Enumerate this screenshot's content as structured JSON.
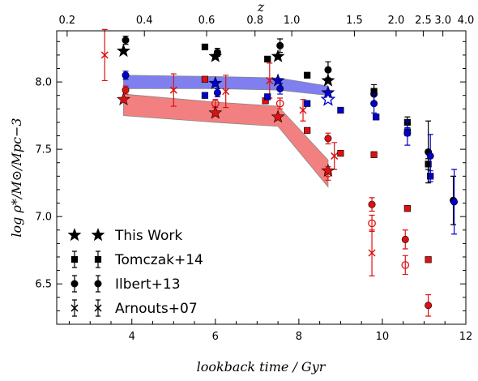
{
  "chart_data": {
    "type": "scatter",
    "title": "",
    "xlabel": "lookback time / Gyr",
    "ylabel": "log ρ*/M⊙/Mpc−3",
    "top_xlabel": "z",
    "xlim": [
      2.2,
      12.0
    ],
    "ylim": [
      6.2,
      8.38
    ],
    "grid": false,
    "legend_position": "lower-left",
    "x_ticks": [
      "4",
      "6",
      "8",
      "10",
      "12"
    ],
    "y_ticks": [
      "6.5",
      "7.0",
      "7.5",
      "8.0"
    ],
    "top_ticks": [
      {
        "label": "0.2",
        "t": 2.45
      },
      {
        "label": "0.4",
        "t": 4.3
      },
      {
        "label": "0.6",
        "t": 5.79
      },
      {
        "label": "0.8",
        "t": 6.95
      },
      {
        "label": "1.0",
        "t": 7.83
      },
      {
        "label": "1.5",
        "t": 9.33
      },
      {
        "label": "2.0",
        "t": 10.33
      },
      {
        "label": "2.5",
        "t": 10.98
      },
      {
        "label": "3.0",
        "t": 11.45
      },
      {
        "label": "4.0",
        "t": 12.0
      }
    ],
    "legend": [
      {
        "label": "This Work",
        "marker": "star"
      },
      {
        "label": "Tomczak+14",
        "marker": "square"
      },
      {
        "label": "Ilbert+13",
        "marker": "circle"
      },
      {
        "label": "Arnouts+07",
        "marker": "x"
      }
    ],
    "bands": [
      {
        "color": "#7f7ff0",
        "x": [
          3.8,
          6.0,
          7.5,
          8.7
        ],
        "lower": [
          7.95,
          7.95,
          7.94,
          7.9
        ],
        "upper": [
          8.05,
          8.04,
          8.03,
          7.97
        ]
      },
      {
        "color": "#f28080",
        "x": [
          3.8,
          6.0,
          7.5,
          8.7
        ],
        "lower": [
          7.75,
          7.7,
          7.67,
          7.22
        ],
        "upper": [
          7.91,
          7.85,
          7.82,
          7.42
        ]
      }
    ],
    "series": [
      {
        "name": "This Work",
        "marker": "star",
        "points": [
          {
            "x": 3.8,
            "y": 8.23,
            "c": "k",
            "f": true
          },
          {
            "x": 3.8,
            "y": 7.87,
            "c": "r",
            "f": true
          },
          {
            "x": 6.0,
            "y": 8.19,
            "c": "k",
            "f": true
          },
          {
            "x": 6.0,
            "y": 7.99,
            "c": "b",
            "f": true
          },
          {
            "x": 6.0,
            "y": 7.77,
            "c": "r",
            "f": true
          },
          {
            "x": 7.5,
            "y": 8.19,
            "c": "k",
            "f": true
          },
          {
            "x": 7.5,
            "y": 8.01,
            "c": "b",
            "f": true
          },
          {
            "x": 7.5,
            "y": 7.74,
            "c": "r",
            "f": true
          },
          {
            "x": 8.7,
            "y": 8.01,
            "c": "k",
            "f": true
          },
          {
            "x": 8.7,
            "y": 7.92,
            "c": "b",
            "f": true
          },
          {
            "x": 8.7,
            "y": 7.87,
            "c": "b",
            "f": false
          },
          {
            "x": 8.7,
            "y": 7.34,
            "c": "r",
            "f": true
          }
        ]
      },
      {
        "name": "Tomczak+14",
        "marker": "square",
        "points": [
          {
            "x": 5.75,
            "y": 8.26,
            "c": "k",
            "f": true,
            "e": 0.02
          },
          {
            "x": 5.75,
            "y": 8.02,
            "c": "r",
            "f": true,
            "e": 0.02
          },
          {
            "x": 5.75,
            "y": 7.9,
            "c": "b",
            "f": true,
            "e": 0.02
          },
          {
            "x": 7.25,
            "y": 8.17,
            "c": "k",
            "f": true,
            "e": 0.02
          },
          {
            "x": 7.2,
            "y": 7.86,
            "c": "r",
            "f": true,
            "e": 0.02
          },
          {
            "x": 7.25,
            "y": 7.89,
            "c": "b",
            "f": true,
            "e": 0.02
          },
          {
            "x": 8.2,
            "y": 8.05,
            "c": "k",
            "f": true,
            "e": 0.02
          },
          {
            "x": 8.2,
            "y": 7.64,
            "c": "r",
            "f": true,
            "e": 0.02
          },
          {
            "x": 8.2,
            "y": 7.84,
            "c": "b",
            "f": true,
            "e": 0.02
          },
          {
            "x": 9.0,
            "y": 7.79,
            "c": "b",
            "f": true,
            "e": 0.02
          },
          {
            "x": 9.0,
            "y": 7.47,
            "c": "r",
            "f": true,
            "e": 0.02
          },
          {
            "x": 9.8,
            "y": 7.93,
            "c": "k",
            "f": true,
            "e": 0.02
          },
          {
            "x": 9.8,
            "y": 7.46,
            "c": "r",
            "f": true,
            "e": 0.02
          },
          {
            "x": 9.85,
            "y": 7.74,
            "c": "b",
            "f": true,
            "e": 0.02
          },
          {
            "x": 10.6,
            "y": 7.7,
            "c": "k",
            "f": true,
            "e": 0.04
          },
          {
            "x": 10.6,
            "y": 7.63,
            "c": "b",
            "f": true,
            "e": 0.03
          },
          {
            "x": 10.6,
            "y": 7.06,
            "c": "r",
            "f": true,
            "e": 0.02
          },
          {
            "x": 11.1,
            "y": 7.39,
            "c": "k",
            "f": true,
            "e": 0.04
          },
          {
            "x": 11.15,
            "y": 7.3,
            "c": "b",
            "f": true,
            "e": 0.04
          },
          {
            "x": 11.1,
            "y": 6.68,
            "c": "r",
            "f": true,
            "e": 0.02
          }
        ]
      },
      {
        "name": "Ilbert+13",
        "marker": "circle",
        "points": [
          {
            "x": 3.85,
            "y": 8.31,
            "c": "k",
            "f": true,
            "e": 0.03
          },
          {
            "x": 3.85,
            "y": 8.05,
            "c": "b",
            "f": true,
            "e": 0.03
          },
          {
            "x": 3.85,
            "y": 7.94,
            "c": "r",
            "f": true,
            "e": 0.03
          },
          {
            "x": 6.05,
            "y": 8.22,
            "c": "k",
            "f": true,
            "e": 0.03
          },
          {
            "x": 6.05,
            "y": 7.92,
            "c": "b",
            "f": true,
            "e": 0.03
          },
          {
            "x": 6.0,
            "y": 7.84,
            "c": "r",
            "f": false,
            "e": 0.03
          },
          {
            "x": 7.55,
            "y": 8.27,
            "c": "k",
            "f": true,
            "e": 0.05
          },
          {
            "x": 7.55,
            "y": 7.95,
            "c": "b",
            "f": true,
            "e": 0.04
          },
          {
            "x": 7.55,
            "y": 7.84,
            "c": "r",
            "f": false,
            "e": 0.04
          },
          {
            "x": 8.7,
            "y": 8.09,
            "c": "k",
            "f": true,
            "e": 0.06
          },
          {
            "x": 8.7,
            "y": 7.58,
            "c": "r",
            "f": true,
            "e": 0.04
          },
          {
            "x": 8.7,
            "y": 7.32,
            "c": "r",
            "f": false,
            "e": 0.05
          },
          {
            "x": 9.8,
            "y": 7.91,
            "c": "k",
            "f": true,
            "e": 0.07
          },
          {
            "x": 9.8,
            "y": 7.84,
            "c": "b",
            "f": true,
            "e": 0.07
          },
          {
            "x": 9.75,
            "y": 7.09,
            "c": "r",
            "f": true,
            "e": 0.05
          },
          {
            "x": 9.75,
            "y": 6.95,
            "c": "r",
            "f": false,
            "e": 0.06
          },
          {
            "x": 10.6,
            "y": 7.62,
            "c": "b",
            "f": true,
            "e": 0.09
          },
          {
            "x": 10.55,
            "y": 6.83,
            "c": "r",
            "f": true,
            "e": 0.07
          },
          {
            "x": 10.55,
            "y": 6.64,
            "c": "r",
            "f": false,
            "e": 0.07
          },
          {
            "x": 11.1,
            "y": 7.48,
            "c": "k",
            "f": true,
            "e": 0.23
          },
          {
            "x": 11.15,
            "y": 7.45,
            "c": "b",
            "f": true,
            "e": 0.16
          },
          {
            "x": 11.1,
            "y": 6.34,
            "c": "r",
            "f": true,
            "e": 0.08
          },
          {
            "x": 11.7,
            "y": 7.12,
            "c": "k",
            "f": true,
            "e": 0.18
          },
          {
            "x": 11.72,
            "y": 7.11,
            "c": "b",
            "f": true,
            "e": 0.24
          }
        ]
      },
      {
        "name": "Arnouts+07",
        "marker": "x",
        "points": [
          {
            "x": 3.35,
            "y": 8.2,
            "c": "r",
            "e": 0.19
          },
          {
            "x": 5.0,
            "y": 7.94,
            "c": "r",
            "e": 0.12
          },
          {
            "x": 6.25,
            "y": 7.93,
            "c": "r",
            "e": 0.12
          },
          {
            "x": 7.3,
            "y": 8.01,
            "c": "r",
            "e": 0.13
          },
          {
            "x": 8.1,
            "y": 7.79,
            "c": "r",
            "e": 0.08
          },
          {
            "x": 8.85,
            "y": 7.45,
            "c": "r",
            "e": 0.1
          },
          {
            "x": 9.75,
            "y": 6.73,
            "c": "r",
            "e": 0.17
          }
        ]
      }
    ],
    "colors": {
      "k": "#000000",
      "b": "#0000cc",
      "r": "#dd1111"
    }
  }
}
